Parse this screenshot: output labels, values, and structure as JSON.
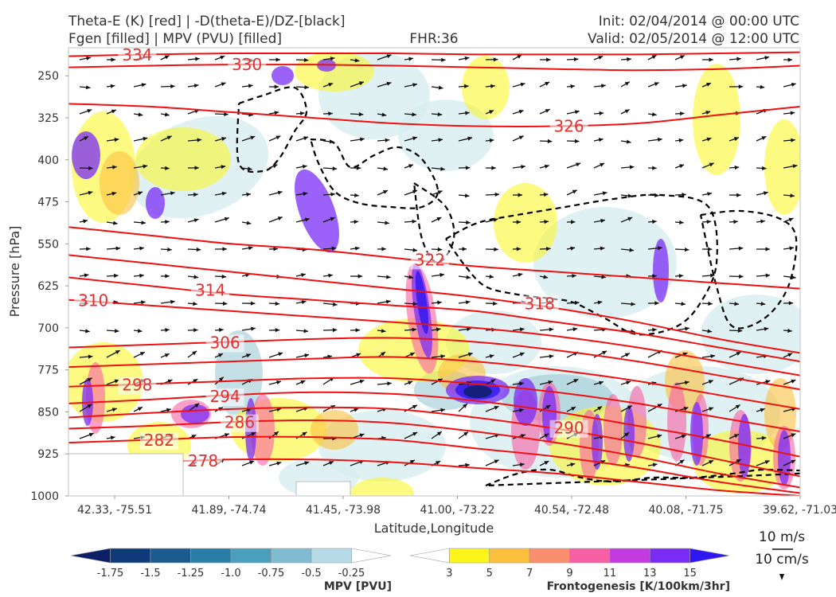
{
  "header": {
    "title_left_1": "Theta-E (K) [red] | -D(theta-E)/DZ-[black]",
    "title_left_2": "Fgen [filled] | MPV (PVU) [filled]",
    "title_center": "FHR:36",
    "title_right_1": "Init: 02/04/2014 @ 00:00 UTC",
    "title_right_2": "Valid: 02/05/2014 @ 12:00 UTC"
  },
  "chart_data": {
    "type": "cross-section",
    "xlabel": "Latitude,Longitude",
    "ylabel": "Pressure [hPa]",
    "x_ticks": [
      "42.33, -75.51",
      "41.89, -74.74",
      "41.45, -73.98",
      "41.00, -73.22",
      "40.54, -72.48",
      "40.08, -71.75",
      "39.62, -71.03"
    ],
    "y_ticks": [
      250,
      325,
      400,
      475,
      550,
      625,
      700,
      775,
      850,
      925,
      1000
    ],
    "ylim": [
      1000,
      200
    ],
    "theta_e_contours": [
      {
        "value": 278,
        "label": "278",
        "p": [
          945,
          940,
          935,
          935,
          940,
          950,
          960,
          975,
          990,
          1000
        ]
      },
      {
        "value": 282,
        "label": "282",
        "p": [
          905,
          900,
          895,
          895,
          900,
          915,
          930,
          950,
          975,
          995
        ]
      },
      {
        "value": 286,
        "label": "286",
        "p": [
          880,
          875,
          868,
          865,
          870,
          885,
          905,
          930,
          960,
          985
        ]
      },
      {
        "value": 290,
        "label": "290",
        "p": [
          860,
          852,
          845,
          842,
          845,
          860,
          880,
          905,
          935,
          965
        ]
      },
      {
        "value": 294,
        "label": "294",
        "p": [
          835,
          828,
          820,
          815,
          818,
          830,
          850,
          875,
          900,
          930
        ]
      },
      {
        "value": 298,
        "label": "298",
        "p": [
          805,
          800,
          795,
          790,
          790,
          800,
          815,
          835,
          860,
          885
        ]
      },
      {
        "value": 302,
        "label": "",
        "p": [
          770,
          765,
          760,
          755,
          752,
          760,
          775,
          795,
          820,
          845
        ]
      },
      {
        "value": 306,
        "label": "306",
        "p": [
          735,
          730,
          725,
          720,
          718,
          725,
          740,
          760,
          785,
          810
        ]
      },
      {
        "value": 310,
        "label": "310",
        "p": [
          650,
          660,
          670,
          680,
          690,
          700,
          715,
          735,
          760,
          785
        ]
      },
      {
        "value": 314,
        "label": "314",
        "p": [
          610,
          625,
          640,
          650,
          660,
          670,
          690,
          710,
          735,
          760
        ]
      },
      {
        "value": 318,
        "label": "318",
        "p": [
          570,
          585,
          600,
          615,
          630,
          645,
          665,
          690,
          720,
          745
        ]
      },
      {
        "value": 322,
        "label": "322",
        "p": [
          520,
          535,
          550,
          560,
          575,
          590,
          600,
          610,
          620,
          630
        ]
      },
      {
        "value": 326,
        "label": "326",
        "p": [
          300,
          305,
          315,
          325,
          335,
          340,
          340,
          335,
          320,
          305
        ]
      },
      {
        "value": 330,
        "label": "330",
        "p": [
          235,
          232,
          230,
          230,
          232,
          235,
          238,
          240,
          238,
          232
        ]
      },
      {
        "value": 334,
        "label": "334",
        "p": [
          215,
          212,
          210,
          210,
          210,
          212,
          212,
          212,
          210,
          208
        ]
      }
    ],
    "colorbar_mpv": {
      "label": "MPV [PVU]",
      "ticks": [
        "-1.75",
        "-1.5",
        "-1.25",
        "-1.0",
        "-0.75",
        "-0.5",
        "-0.25"
      ],
      "colors": [
        "#0b1f66",
        "#0f3a7a",
        "#1a5a8f",
        "#2a7da6",
        "#4a9fbd",
        "#7fbcd1",
        "#b7dbe6",
        "#ffffff"
      ]
    },
    "colorbar_fgen": {
      "label": "Frontogenesis [K/100km/3hr]",
      "ticks": [
        "3",
        "5",
        "7",
        "9",
        "11",
        "13",
        "15"
      ],
      "colors": [
        "#ffffff",
        "#fcf51c",
        "#fcbf3e",
        "#fb8e6e",
        "#f65fa3",
        "#c33be0",
        "#7a2cf5",
        "#2e17f0"
      ]
    },
    "vector_key": {
      "speed_label": "10 m/s",
      "vertical_label": "10 cm/s"
    },
    "colors": {
      "theta_e": "#ee1111",
      "dthetae_dz": "#000000",
      "frame": "#cccccc"
    }
  }
}
